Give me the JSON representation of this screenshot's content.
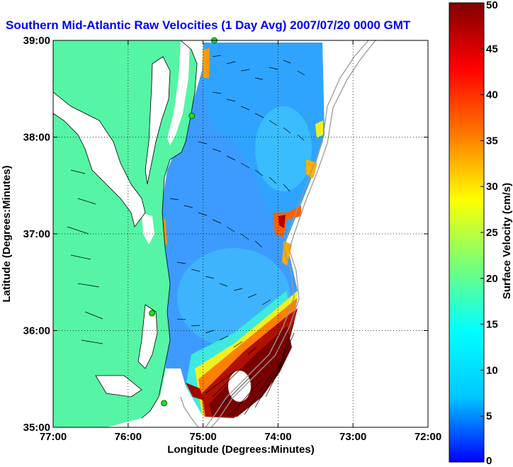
{
  "chart_data": {
    "type": "heatmap",
    "title": "Southern Mid-Atlantic Raw Velocities (1 Day Avg) 2007/07/20 0000 GMT",
    "xlabel": "Longitude (Degrees:Minutes)",
    "ylabel": "Latitude (Degrees:Minutes)",
    "xlim": [
      -77,
      -72
    ],
    "ylim": [
      35,
      39
    ],
    "x_ticks": [
      {
        "value": -77,
        "label": "77:00"
      },
      {
        "value": -76,
        "label": "76:00"
      },
      {
        "value": -75,
        "label": "75:00"
      },
      {
        "value": -74,
        "label": "74:00"
      },
      {
        "value": -73,
        "label": "73:00"
      },
      {
        "value": -72,
        "label": "72:00"
      }
    ],
    "y_ticks": [
      {
        "value": 35,
        "label": "35:00"
      },
      {
        "value": 36,
        "label": "36:00"
      },
      {
        "value": 37,
        "label": "37:00"
      },
      {
        "value": 38,
        "label": "38:00"
      },
      {
        "value": 39,
        "label": "39:00"
      }
    ],
    "grid": true,
    "colorbar": {
      "label": "Surface Velocity (cm/s)",
      "min": 0,
      "max": 50,
      "ticks": [
        0,
        5,
        10,
        15,
        20,
        25,
        30,
        35,
        40,
        45,
        50
      ],
      "colormap": [
        "#0000ff",
        "#00c8ff",
        "#00ffff",
        "#78ff78",
        "#ffff00",
        "#ff7800",
        "#ff0000",
        "#800000"
      ]
    },
    "land_color": "#55f5a5",
    "stations": [
      {
        "lon": -74.85,
        "lat": 39.0
      },
      {
        "lon": -75.15,
        "lat": 38.22
      },
      {
        "lon": -75.68,
        "lat": 36.18
      },
      {
        "lon": -75.52,
        "lat": 35.25
      }
    ]
  }
}
